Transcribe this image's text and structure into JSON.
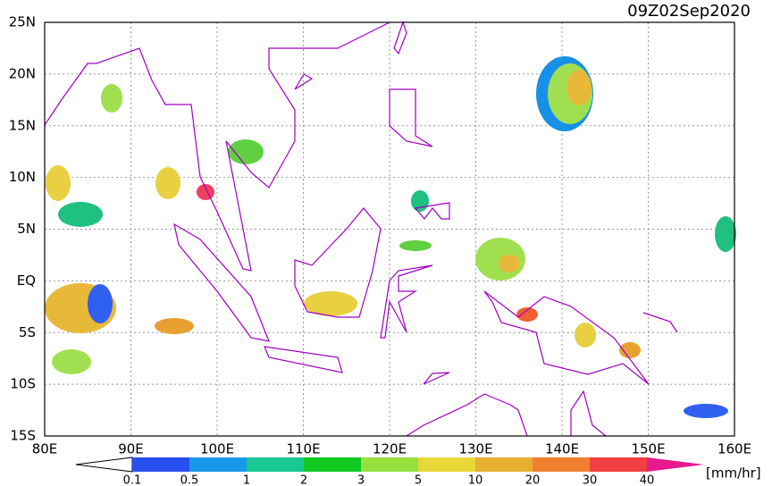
{
  "map": {
    "title": "09Z02Sep2020",
    "lon_labels": [
      "80E",
      "90E",
      "100E",
      "110E",
      "120E",
      "130E",
      "140E",
      "150E",
      "160E"
    ],
    "lat_labels": [
      "25N",
      "20N",
      "15N",
      "10N",
      "5N",
      "EQ",
      "5S",
      "10S",
      "15S"
    ]
  },
  "colorbar": {
    "labels": [
      "0.1",
      "0.5",
      "1",
      "2",
      "3",
      "5",
      "10",
      "20",
      "30",
      "40"
    ],
    "unit": "[mm/hr]"
  }
}
